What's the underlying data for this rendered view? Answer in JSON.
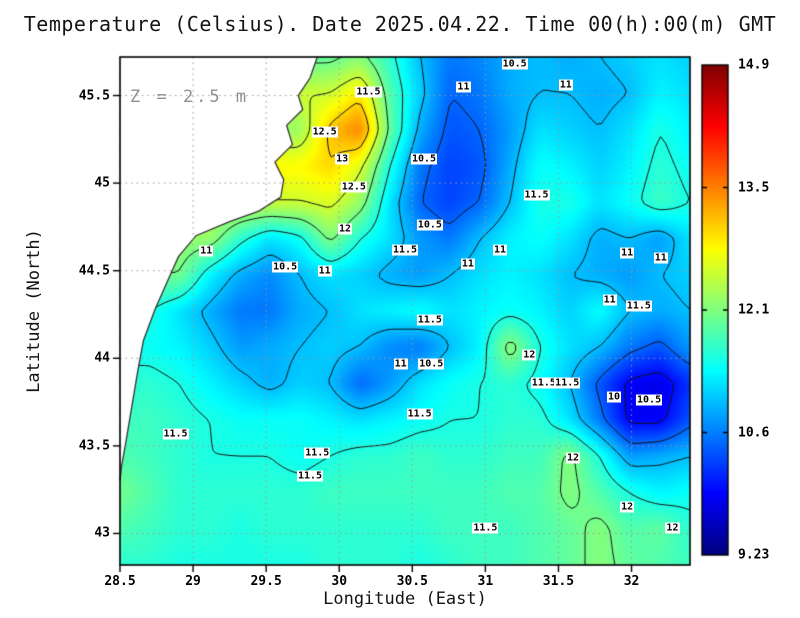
{
  "chart_data": {
    "type": "heatmap",
    "title": "Temperature (Celsius). Date 2025.04.22. Time 00(h):00(m) GMT",
    "annotation": "Z = 2.5 m",
    "xlabel": "Longitude (East)",
    "ylabel": "Latitude (North)",
    "units": "Celsius",
    "x_range": [
      28.5,
      32.4
    ],
    "y_range": [
      42.82,
      45.72
    ],
    "x_ticks": [
      28.5,
      29,
      29.5,
      30,
      30.5,
      31,
      31.5,
      32
    ],
    "x_tick_labels": [
      "28.5",
      "29",
      "29.5",
      "30",
      "30.5",
      "31",
      "31.5",
      "32"
    ],
    "y_ticks": [
      43,
      43.5,
      44,
      44.5,
      45,
      45.5
    ],
    "y_tick_labels": [
      "43",
      "43.5",
      "44",
      "44.5",
      "45",
      "45.5"
    ],
    "grid_on": true,
    "colorbar": {
      "min": 9.23,
      "max": 14.9,
      "tick_labels": [
        "14.9",
        "13.5",
        "12.1",
        "10.6",
        "9.23"
      ],
      "colormap": "jet"
    },
    "contour_levels": [
      10,
      10.5,
      11,
      11.5,
      12,
      12.5,
      13
    ],
    "grid": {
      "cols_lon_west_to_east": 20,
      "rows_lat_north_to_south": 15,
      "land_value": null,
      "values": [
        [
          null,
          null,
          null,
          null,
          null,
          null,
          null,
          11.9,
          12.1,
          11.6,
          11.0,
          10.6,
          10.7,
          10.9,
          11.0,
          10.9,
          11.0,
          11.1,
          11.2,
          11.1
        ],
        [
          null,
          null,
          null,
          null,
          null,
          null,
          null,
          12.5,
          12.9,
          11.8,
          11.1,
          10.5,
          10.6,
          10.9,
          11.0,
          11.0,
          10.9,
          11.0,
          11.3,
          11.2
        ],
        [
          null,
          null,
          null,
          null,
          null,
          null,
          12.2,
          13.1,
          13.5,
          11.9,
          10.9,
          10.4,
          10.5,
          10.8,
          11.2,
          11.1,
          11.0,
          11.2,
          11.5,
          11.3
        ],
        [
          null,
          null,
          null,
          null,
          null,
          null,
          12.8,
          13.0,
          12.6,
          11.5,
          10.6,
          10.3,
          10.4,
          10.9,
          11.4,
          11.3,
          11.1,
          11.3,
          11.6,
          11.4
        ],
        [
          null,
          null,
          null,
          null,
          null,
          null,
          12.5,
          12.6,
          12.2,
          11.2,
          10.5,
          10.3,
          10.5,
          11.0,
          11.5,
          11.5,
          11.2,
          11.4,
          11.7,
          11.5
        ],
        [
          null,
          null,
          null,
          12.2,
          11.6,
          11.2,
          11.4,
          12.1,
          11.5,
          11.2,
          10.8,
          10.6,
          11.0,
          11.3,
          11.4,
          11.2,
          10.9,
          11.0,
          10.8,
          11.2
        ],
        [
          null,
          null,
          12.0,
          11.3,
          10.9,
          10.7,
          11.0,
          11.2,
          11.1,
          10.9,
          10.8,
          11.0,
          11.2,
          11.3,
          11.2,
          11.0,
          10.9,
          10.8,
          11.0,
          11.1
        ],
        [
          null,
          11.5,
          11.2,
          10.9,
          10.6,
          10.6,
          10.9,
          11.0,
          11.2,
          11.3,
          11.4,
          11.2,
          11.3,
          11.4,
          11.3,
          11.1,
          11.4,
          11.0,
          10.9,
          11.0
        ],
        [
          null,
          11.4,
          11.3,
          11.1,
          10.8,
          10.9,
          11.0,
          11.1,
          11.0,
          10.7,
          10.6,
          11.0,
          11.3,
          12.2,
          11.5,
          11.2,
          11.0,
          10.6,
          10.4,
          10.8
        ],
        [
          null,
          11.6,
          11.5,
          11.3,
          11.1,
          10.9,
          11.1,
          11.0,
          10.5,
          10.8,
          11.2,
          11.4,
          11.5,
          11.6,
          11.4,
          11.0,
          10.4,
          9.9,
          9.8,
          10.2
        ],
        [
          null,
          11.7,
          11.6,
          11.5,
          11.4,
          11.4,
          11.4,
          11.3,
          11.2,
          11.3,
          11.4,
          11.5,
          11.5,
          11.6,
          11.6,
          11.2,
          10.6,
          9.9,
          9.9,
          10.4
        ],
        [
          11.8,
          11.7,
          11.6,
          11.5,
          11.5,
          11.5,
          11.4,
          11.5,
          11.6,
          11.6,
          11.7,
          11.6,
          11.6,
          11.7,
          11.7,
          12.1,
          11.5,
          10.8,
          10.9,
          11.0
        ],
        [
          12.0,
          11.8,
          11.6,
          11.6,
          11.6,
          11.6,
          11.6,
          11.7,
          11.7,
          11.7,
          11.7,
          11.7,
          11.7,
          11.8,
          11.8,
          12.1,
          11.8,
          11.5,
          11.3,
          11.4
        ],
        [
          11.8,
          11.7,
          11.6,
          11.6,
          11.5,
          11.6,
          11.6,
          11.6,
          11.6,
          11.6,
          11.6,
          11.7,
          11.7,
          11.7,
          11.8,
          11.9,
          12.1,
          11.8,
          11.9,
          11.6
        ],
        [
          11.6,
          11.6,
          11.5,
          11.5,
          11.5,
          11.5,
          11.5,
          11.6,
          11.6,
          11.6,
          11.5,
          11.6,
          11.7,
          11.7,
          11.8,
          11.9,
          12.1,
          11.9,
          11.8,
          11.7
        ]
      ]
    },
    "contour_labels": [
      {
        "lon": 31.2,
        "lat": 45.68,
        "text": "10.5"
      },
      {
        "lon": 30.85,
        "lat": 45.55,
        "text": "11"
      },
      {
        "lon": 31.55,
        "lat": 45.56,
        "text": "11"
      },
      {
        "lon": 30.2,
        "lat": 45.52,
        "text": "11.5"
      },
      {
        "lon": 29.9,
        "lat": 45.29,
        "text": "12.5"
      },
      {
        "lon": 30.02,
        "lat": 45.14,
        "text": "13"
      },
      {
        "lon": 30.58,
        "lat": 45.14,
        "text": "10.5"
      },
      {
        "lon": 30.1,
        "lat": 44.98,
        "text": "12.5"
      },
      {
        "lon": 31.35,
        "lat": 44.93,
        "text": "11.5"
      },
      {
        "lon": 30.04,
        "lat": 44.74,
        "text": "12"
      },
      {
        "lon": 30.62,
        "lat": 44.76,
        "text": "10.5"
      },
      {
        "lon": 29.09,
        "lat": 44.61,
        "text": "11"
      },
      {
        "lon": 29.63,
        "lat": 44.52,
        "text": "10.5"
      },
      {
        "lon": 29.9,
        "lat": 44.5,
        "text": "11"
      },
      {
        "lon": 30.45,
        "lat": 44.62,
        "text": "11.5"
      },
      {
        "lon": 30.88,
        "lat": 44.54,
        "text": "11"
      },
      {
        "lon": 31.1,
        "lat": 44.62,
        "text": "11"
      },
      {
        "lon": 31.97,
        "lat": 44.6,
        "text": "11"
      },
      {
        "lon": 32.2,
        "lat": 44.57,
        "text": "11"
      },
      {
        "lon": 31.85,
        "lat": 44.33,
        "text": "11"
      },
      {
        "lon": 32.05,
        "lat": 44.3,
        "text": "11.5"
      },
      {
        "lon": 30.62,
        "lat": 44.22,
        "text": "11.5"
      },
      {
        "lon": 30.42,
        "lat": 43.97,
        "text": "11"
      },
      {
        "lon": 30.63,
        "lat": 43.97,
        "text": "10.5"
      },
      {
        "lon": 31.3,
        "lat": 44.02,
        "text": "12"
      },
      {
        "lon": 31.4,
        "lat": 43.86,
        "text": "11.5"
      },
      {
        "lon": 31.56,
        "lat": 43.86,
        "text": "11.5"
      },
      {
        "lon": 31.88,
        "lat": 43.78,
        "text": "10"
      },
      {
        "lon": 32.12,
        "lat": 43.76,
        "text": "10.5"
      },
      {
        "lon": 28.88,
        "lat": 43.57,
        "text": "11.5"
      },
      {
        "lon": 30.55,
        "lat": 43.68,
        "text": "11.5"
      },
      {
        "lon": 29.85,
        "lat": 43.46,
        "text": "11.5"
      },
      {
        "lon": 29.8,
        "lat": 43.33,
        "text": "11.5"
      },
      {
        "lon": 31.6,
        "lat": 43.43,
        "text": "12"
      },
      {
        "lon": 31.97,
        "lat": 43.15,
        "text": "12"
      },
      {
        "lon": 32.28,
        "lat": 43.03,
        "text": "12"
      },
      {
        "lon": 31.0,
        "lat": 43.03,
        "text": "11.5"
      }
    ],
    "coastline_lon_lat": [
      [
        29.85,
        45.72
      ],
      [
        29.8,
        45.6
      ],
      [
        29.72,
        45.5
      ],
      [
        29.75,
        45.42
      ],
      [
        29.64,
        45.33
      ],
      [
        29.68,
        45.22
      ],
      [
        29.56,
        45.12
      ],
      [
        29.62,
        45.02
      ],
      [
        29.6,
        44.92
      ],
      [
        29.45,
        44.84
      ],
      [
        29.25,
        44.78
      ],
      [
        29.02,
        44.7
      ],
      [
        28.9,
        44.58
      ],
      [
        28.83,
        44.45
      ],
      [
        28.74,
        44.28
      ],
      [
        28.66,
        44.1
      ],
      [
        28.62,
        43.92
      ],
      [
        28.58,
        43.72
      ],
      [
        28.54,
        43.52
      ],
      [
        28.51,
        43.38
      ],
      [
        28.5,
        43.3
      ]
    ]
  },
  "colors": {
    "background": "#ffffff",
    "land": "#ffffff",
    "coast": "#333333",
    "contour": "#111111",
    "grid_dots": "#999999",
    "frame": "#000000",
    "text": "#000000",
    "annotation_text": "#8f8f8f",
    "label_bg": "#ffffff"
  }
}
